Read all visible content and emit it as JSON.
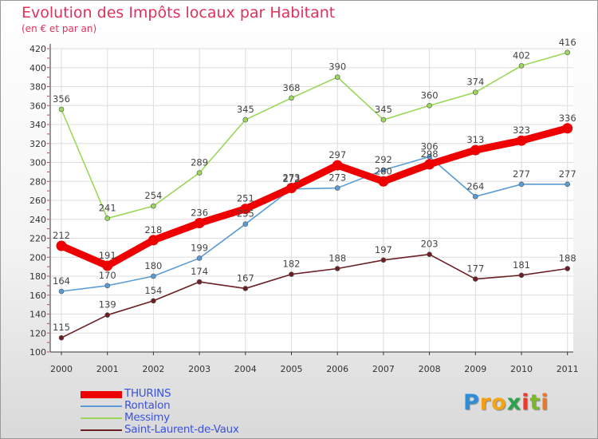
{
  "chart_data": {
    "type": "line",
    "title": "Evolution des Impôts locaux par Habitant",
    "subtitle": "(en € et par an)",
    "x": [
      "2000",
      "2001",
      "2002",
      "2003",
      "2004",
      "2005",
      "2006",
      "2007",
      "2008",
      "2009",
      "2010",
      "2011"
    ],
    "ylim": [
      100,
      420
    ],
    "yticks": [
      100,
      120,
      140,
      160,
      180,
      200,
      220,
      240,
      260,
      280,
      300,
      320,
      340,
      360,
      380,
      400,
      420
    ],
    "grid": true,
    "legend_position": "bottom-left",
    "series": [
      {
        "name": "THURINS",
        "color": "#ee0000",
        "emphasis": true,
        "values": [
          212,
          191,
          218,
          236,
          251,
          273,
          297,
          280,
          298,
          313,
          323,
          336
        ]
      },
      {
        "name": "Rontalon",
        "color": "#5b9bd5",
        "values": [
          164,
          170,
          180,
          199,
          235,
          272,
          273,
          292,
          306,
          264,
          277,
          277
        ]
      },
      {
        "name": "Messimy",
        "color": "#9ad75a",
        "values": [
          356,
          241,
          254,
          289,
          345,
          368,
          390,
          345,
          360,
          374,
          402,
          416
        ]
      },
      {
        "name": "Saint-Laurent-de-Vaux",
        "color": "#6b1f24",
        "values": [
          115,
          139,
          154,
          174,
          167,
          182,
          188,
          197,
          203,
          177,
          181,
          188
        ]
      }
    ]
  },
  "brand": {
    "letters": [
      "P",
      "r",
      "o",
      "x",
      "i",
      "t",
      "i"
    ],
    "colors": [
      "#2e8fd8",
      "#f29e16",
      "#f2a516",
      "#2aa34a",
      "#e63b2e",
      "#79b829",
      "#e6792e"
    ]
  }
}
